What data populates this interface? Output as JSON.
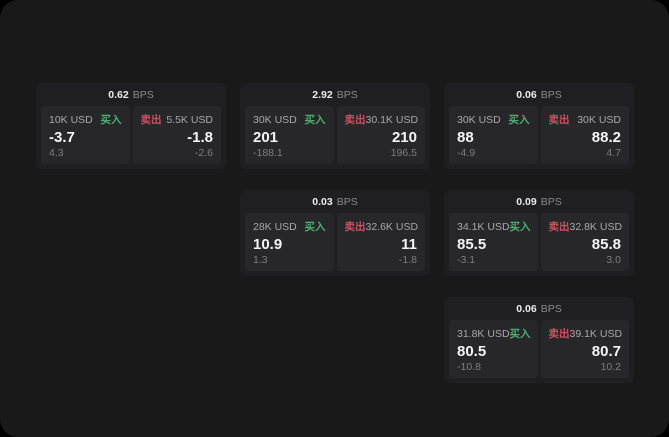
{
  "labels": {
    "bps_unit": "BPS",
    "buy": "买入",
    "sell": "卖出"
  },
  "colors": {
    "buy": "#4caf72",
    "sell": "#cb5060",
    "window_bg": "#19191a",
    "card_bg": "#1f1f21",
    "panel_bg": "#27272a"
  },
  "cards": [
    {
      "bps": "0.62",
      "buy": {
        "amount": "10K USD",
        "price": "-3.7",
        "sub": "4.3"
      },
      "sell": {
        "amount": "5.5K USD",
        "price": "-1.8",
        "sub": "-2.6"
      }
    },
    {
      "bps": "2.92",
      "buy": {
        "amount": "30K USD",
        "price": "201",
        "sub": "-188.1"
      },
      "sell": {
        "amount": "30.1K USD",
        "price": "210",
        "sub": "196.5"
      }
    },
    {
      "bps": "0.06",
      "buy": {
        "amount": "30K USD",
        "price": "88",
        "sub": "-4.9"
      },
      "sell": {
        "amount": "30K USD",
        "price": "88.2",
        "sub": "4.7"
      }
    },
    {
      "bps": "0.03",
      "buy": {
        "amount": "28K USD",
        "price": "10.9",
        "sub": "1.3"
      },
      "sell": {
        "amount": "32.6K USD",
        "price": "11",
        "sub": "-1.8"
      }
    },
    {
      "bps": "0.09",
      "buy": {
        "amount": "34.1K USD",
        "price": "85.5",
        "sub": "-3.1"
      },
      "sell": {
        "amount": "32.8K USD",
        "price": "85.8",
        "sub": "3.0"
      }
    },
    {
      "bps": "0.06",
      "buy": {
        "amount": "31.8K USD",
        "price": "80.5",
        "sub": "-10.8"
      },
      "sell": {
        "amount": "39.1K USD",
        "price": "80.7",
        "sub": "10.2"
      }
    }
  ]
}
